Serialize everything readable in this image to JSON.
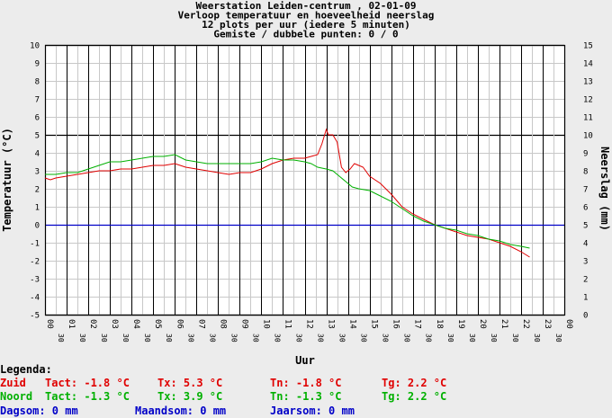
{
  "chart_data": {
    "type": "line",
    "title_lines": [
      "Weerstation Leiden-centrum , 02-01-09",
      "Verloop temperatuur en hoeveelheid neerslag",
      "12 plots per uur (iedere 5 minuten)",
      "Gemiste / dubbele punten: 0 / 0"
    ],
    "xlabel": "Uur",
    "ylabel_left": "Temperatuur (°C)",
    "ylabel_right": "Neerslag (mm)",
    "ylim_left": [
      -5,
      10
    ],
    "ylim_right": [
      0,
      15
    ],
    "xlim": [
      0,
      24
    ],
    "y_ticks_left": [
      "-5",
      "-4",
      "-3",
      "-2",
      "-1",
      "0",
      "1",
      "2",
      "3",
      "4",
      "5",
      "6",
      "7",
      "8",
      "9",
      "10"
    ],
    "y_ticks_right": [
      "0",
      "1",
      "2",
      "3",
      "4",
      "5",
      "6",
      "7",
      "8",
      "9",
      "10",
      "11",
      "12",
      "13",
      "14",
      "15"
    ],
    "x_ticks": [
      {
        "hour": "00",
        "sub": "30"
      },
      {
        "hour": "01",
        "sub": "30"
      },
      {
        "hour": "02",
        "sub": "30"
      },
      {
        "hour": "03",
        "sub": "30"
      },
      {
        "hour": "04",
        "sub": "30"
      },
      {
        "hour": "05",
        "sub": "30"
      },
      {
        "hour": "06",
        "sub": "30"
      },
      {
        "hour": "07",
        "sub": "30"
      },
      {
        "hour": "08",
        "sub": "30"
      },
      {
        "hour": "09",
        "sub": "30"
      },
      {
        "hour": "10",
        "sub": "30"
      },
      {
        "hour": "11",
        "sub": "30"
      },
      {
        "hour": "12",
        "sub": "30"
      },
      {
        "hour": "13",
        "sub": "30"
      },
      {
        "hour": "14",
        "sub": "30"
      },
      {
        "hour": "15",
        "sub": "30"
      },
      {
        "hour": "16",
        "sub": "30"
      },
      {
        "hour": "17",
        "sub": "30"
      },
      {
        "hour": "18",
        "sub": "30"
      },
      {
        "hour": "19",
        "sub": "30"
      },
      {
        "hour": "20",
        "sub": "30"
      },
      {
        "hour": "21",
        "sub": "30"
      },
      {
        "hour": "22",
        "sub": "30"
      },
      {
        "hour": "23",
        "sub": "30"
      },
      {
        "hour": "00",
        "sub": ""
      }
    ],
    "series": [
      {
        "name": "Zuid",
        "color": "#e00000",
        "axis": "left",
        "x": [
          0,
          0.25,
          0.5,
          1,
          1.5,
          2,
          2.5,
          3,
          3.5,
          4,
          4.5,
          5,
          5.5,
          6,
          6.5,
          7,
          7.5,
          8,
          8.5,
          9,
          9.5,
          10,
          10.5,
          11,
          11.5,
          12,
          12.3,
          12.6,
          12.8,
          13,
          13.1,
          13.3,
          13.5,
          13.7,
          13.9,
          14.1,
          14.3,
          14.5,
          14.7,
          15,
          15.5,
          16,
          16.5,
          17,
          17.5,
          18,
          18.5,
          19,
          19.5,
          20,
          20.5,
          21,
          21.5,
          22,
          22.4
        ],
        "y": [
          2.6,
          2.5,
          2.6,
          2.7,
          2.8,
          2.9,
          3.0,
          3.0,
          3.1,
          3.1,
          3.2,
          3.3,
          3.3,
          3.4,
          3.2,
          3.1,
          3.0,
          2.9,
          2.8,
          2.9,
          2.9,
          3.1,
          3.4,
          3.6,
          3.7,
          3.7,
          3.8,
          3.9,
          4.5,
          5.3,
          5.0,
          5.0,
          4.6,
          3.2,
          2.9,
          3.1,
          3.4,
          3.3,
          3.2,
          2.7,
          2.3,
          1.7,
          1.0,
          0.6,
          0.3,
          0.0,
          -0.2,
          -0.4,
          -0.6,
          -0.7,
          -0.8,
          -1.0,
          -1.2,
          -1.5,
          -1.8
        ]
      },
      {
        "name": "Noord",
        "color": "#00b000",
        "axis": "left",
        "x": [
          0,
          0.25,
          0.5,
          1,
          1.5,
          2,
          2.5,
          3,
          3.5,
          4,
          4.5,
          5,
          5.5,
          6,
          6.5,
          7,
          7.5,
          8,
          8.5,
          9,
          9.5,
          10,
          10.5,
          11,
          11.5,
          12,
          12.3,
          12.6,
          13,
          13.3,
          13.6,
          13.9,
          14.2,
          14.5,
          15,
          15.5,
          16,
          16.5,
          17,
          17.5,
          18,
          18.5,
          19,
          19.5,
          20,
          20.5,
          21,
          21.5,
          22,
          22.4
        ],
        "y": [
          2.8,
          2.8,
          2.8,
          2.9,
          2.9,
          3.1,
          3.3,
          3.5,
          3.5,
          3.6,
          3.7,
          3.8,
          3.8,
          3.9,
          3.6,
          3.5,
          3.4,
          3.4,
          3.4,
          3.4,
          3.4,
          3.5,
          3.7,
          3.6,
          3.6,
          3.5,
          3.4,
          3.2,
          3.1,
          3.0,
          2.7,
          2.4,
          2.1,
          2.0,
          1.9,
          1.6,
          1.3,
          0.9,
          0.5,
          0.2,
          0.0,
          -0.2,
          -0.3,
          -0.5,
          -0.6,
          -0.8,
          -0.9,
          -1.1,
          -1.2,
          -1.3
        ]
      }
    ],
    "reference_line": {
      "value": 0,
      "color": "#0000c8"
    },
    "grid": true
  },
  "legend": {
    "title": "Legenda:",
    "rows": [
      {
        "name": "Zuid",
        "tact": "Tact: -1.8 °C",
        "tx": "Tx: 5.3 °C",
        "tn": "Tn: -1.8 °C",
        "tg": "Tg: 2.2 °C",
        "color": "#e00000"
      },
      {
        "name": "Noord",
        "tact": "Tact: -1.3 °C",
        "tx": "Tx: 3.9 °C",
        "tn": "Tn: -1.3 °C",
        "tg": "Tg: 2.2 °C",
        "color": "#00b000"
      }
    ],
    "rain": {
      "dag": "Dagsom: 0 mm",
      "maand": "Maandsom: 0 mm",
      "jaar": "Jaarsom: 0 mm",
      "color": "#0000c8"
    }
  }
}
